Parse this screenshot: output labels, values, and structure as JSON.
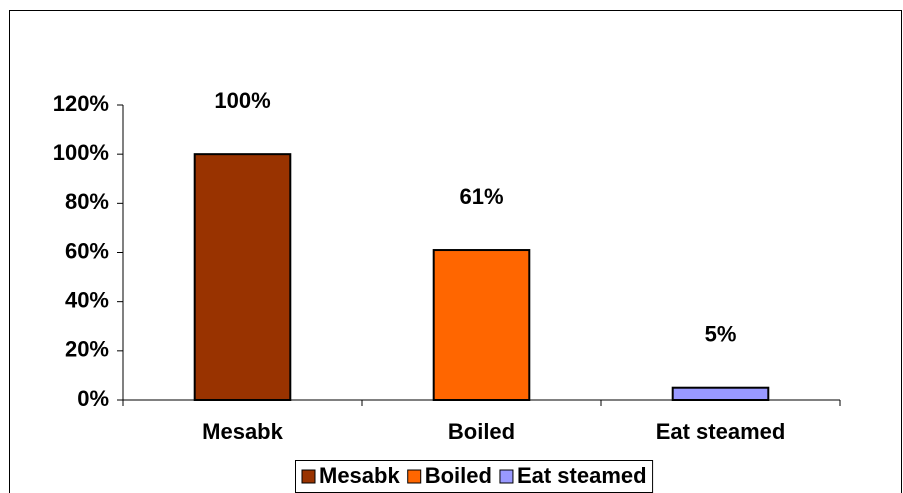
{
  "chart_data": {
    "type": "bar",
    "categories": [
      "Mesabk",
      "Boiled",
      "Eat steamed"
    ],
    "values": [
      100,
      61,
      5
    ],
    "value_labels": [
      "100%",
      "61%",
      "5%"
    ],
    "colors": [
      "#993300",
      "#ff6600",
      "#9999ff"
    ],
    "ylim": [
      0,
      120
    ],
    "yticks": [
      {
        "value": 0,
        "label": "0%"
      },
      {
        "value": 20,
        "label": "20%"
      },
      {
        "value": 40,
        "label": "40%"
      },
      {
        "value": 60,
        "label": "60%"
      },
      {
        "value": 80,
        "label": "80%"
      },
      {
        "value": 100,
        "label": "100%"
      },
      {
        "value": 120,
        "label": "120%"
      }
    ],
    "grid": false,
    "legend": "bottom"
  }
}
